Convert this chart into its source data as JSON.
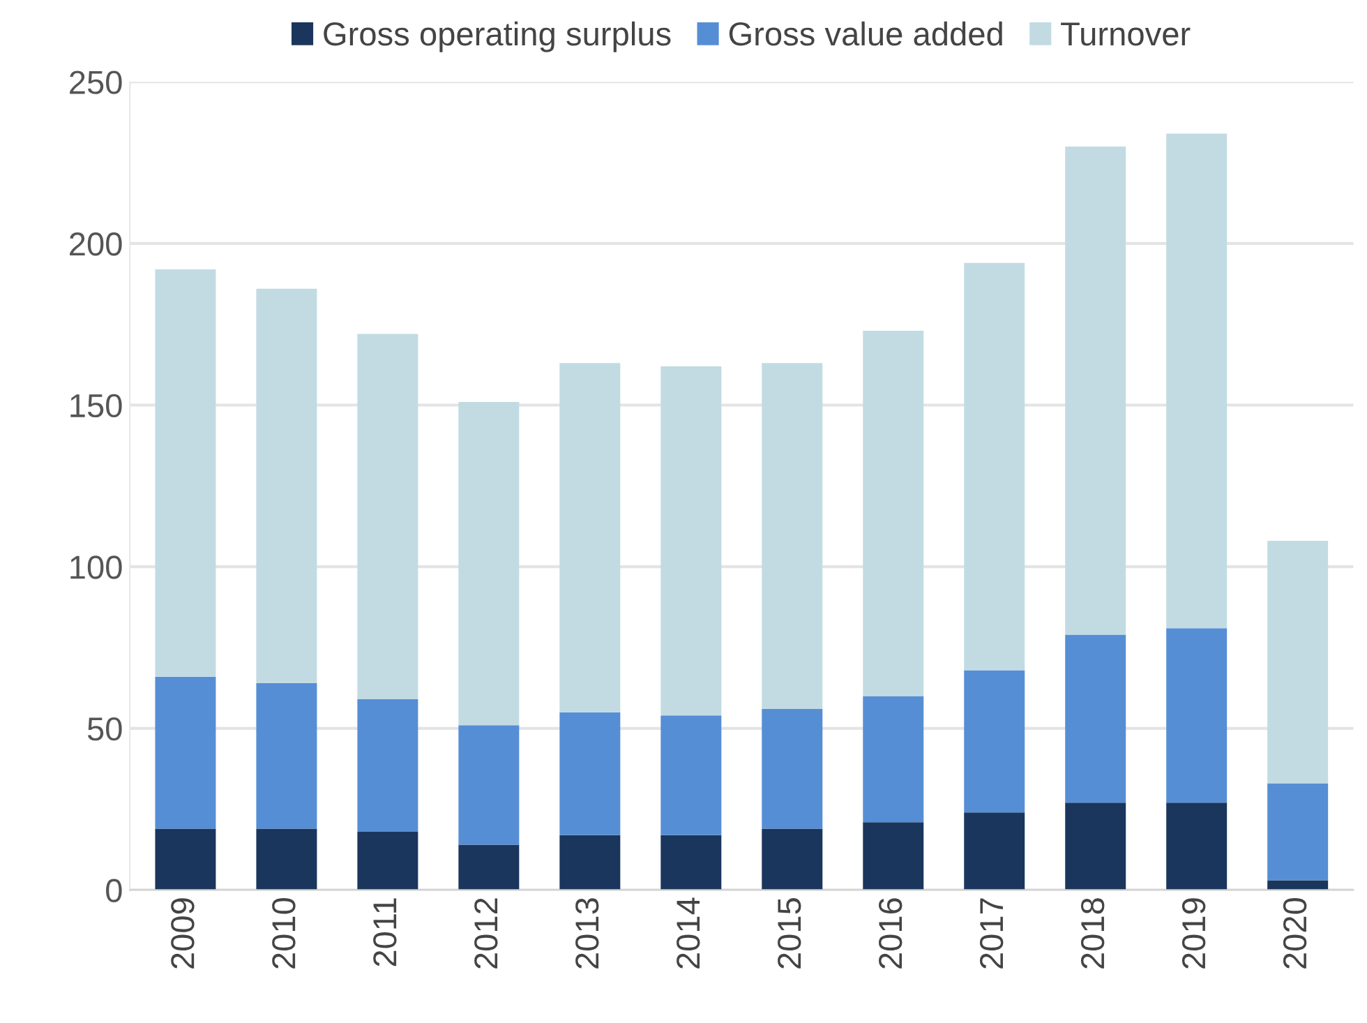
{
  "chart_data": {
    "type": "bar",
    "stacked": true,
    "categories": [
      "2009",
      "2010",
      "2011",
      "2012",
      "2013",
      "2014",
      "2015",
      "2016",
      "2017",
      "2018",
      "2019",
      "2020"
    ],
    "series": [
      {
        "name": "Gross operating surplus",
        "color": "#1b365d",
        "values": [
          19,
          19,
          18,
          14,
          17,
          17,
          19,
          21,
          24,
          27,
          27,
          3
        ]
      },
      {
        "name": "Gross value added",
        "color": "#558ed5",
        "values": [
          47,
          45,
          41,
          37,
          38,
          37,
          37,
          39,
          44,
          52,
          54,
          30
        ]
      },
      {
        "name": "Turnover",
        "color": "#c2dbe3",
        "values": [
          126,
          122,
          113,
          100,
          108,
          108,
          107,
          113,
          126,
          151,
          153,
          75
        ]
      }
    ],
    "ylim": [
      0,
      250
    ],
    "yticks": [
      0,
      50,
      100,
      150,
      200,
      250
    ],
    "grid": "y",
    "legend": "top"
  }
}
